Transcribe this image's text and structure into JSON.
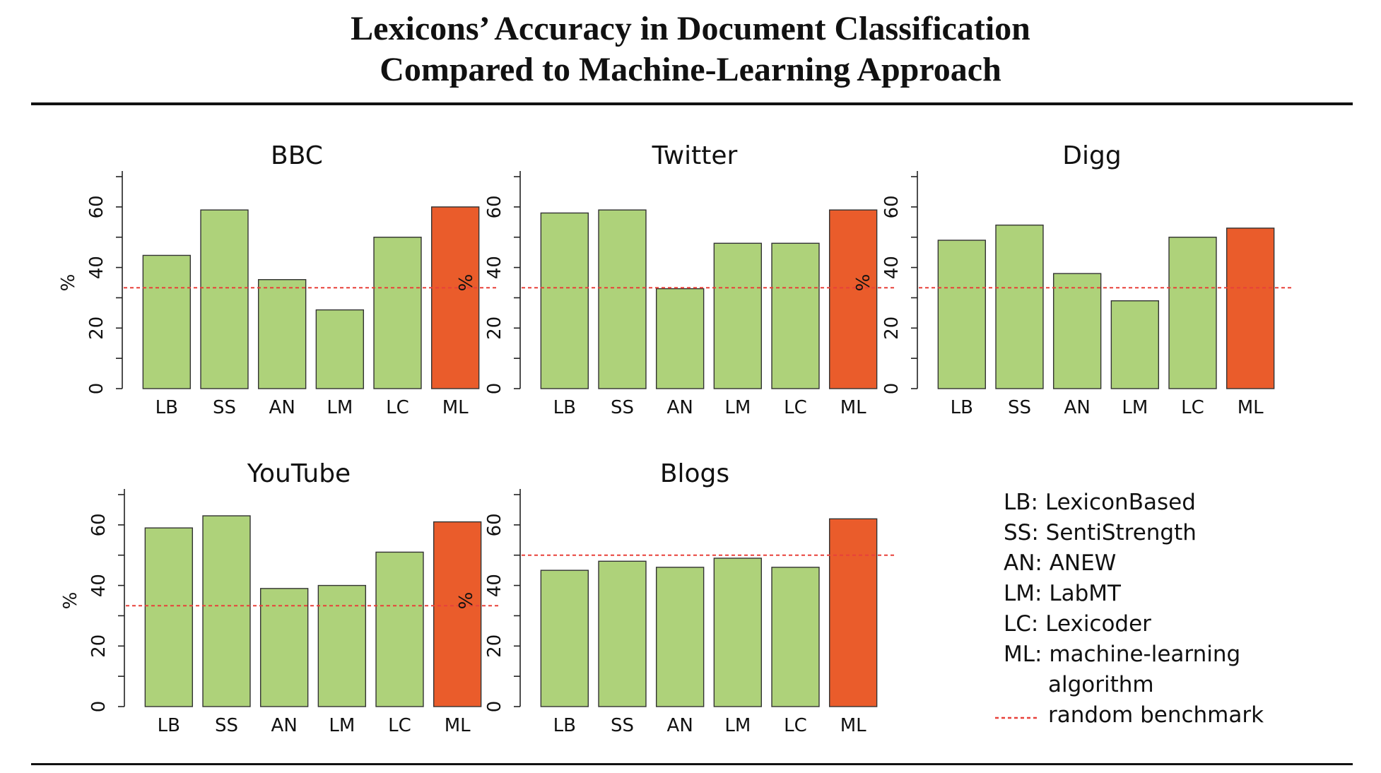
{
  "page": {
    "title_line1": "Lexicons’ Accuracy in Document Classification",
    "title_line2": "Compared to Machine-Learning Approach"
  },
  "colors": {
    "lexicon_bar": "#aed27a",
    "ml_bar": "#ea5c2b",
    "benchmark_line": "#e8413a",
    "bar_outline": "#333333"
  },
  "legend": {
    "items": [
      {
        "label": "LB: LexiconBased"
      },
      {
        "label": "SS: SentiStrength"
      },
      {
        "label": "AN: ANEW"
      },
      {
        "label": "LM: LabMT"
      },
      {
        "label": "LC: Lexicoder"
      },
      {
        "label": "ML: machine-learning"
      },
      {
        "label": "algorithm"
      },
      {
        "label": "random benchmark"
      }
    ]
  },
  "chart_data": [
    {
      "type": "bar",
      "title": "BBC",
      "ylabel": "%",
      "categories": [
        "LB",
        "SS",
        "AN",
        "LM",
        "LC",
        "ML"
      ],
      "values": [
        44,
        59,
        36,
        26,
        50,
        60
      ],
      "benchmark": 33.3,
      "ylim": [
        0,
        70
      ],
      "yticks": [
        0,
        20,
        40,
        60
      ]
    },
    {
      "type": "bar",
      "title": "Twitter",
      "ylabel": "%",
      "categories": [
        "LB",
        "SS",
        "AN",
        "LM",
        "LC",
        "ML"
      ],
      "values": [
        58,
        59,
        33,
        48,
        48,
        59
      ],
      "benchmark": 33.3,
      "ylim": [
        0,
        70
      ],
      "yticks": [
        0,
        20,
        40,
        60
      ]
    },
    {
      "type": "bar",
      "title": "Digg",
      "ylabel": "%",
      "categories": [
        "LB",
        "SS",
        "AN",
        "LM",
        "LC",
        "ML"
      ],
      "values": [
        49,
        54,
        38,
        29,
        50,
        53
      ],
      "benchmark": 33.3,
      "ylim": [
        0,
        70
      ],
      "yticks": [
        0,
        20,
        40,
        60
      ]
    },
    {
      "type": "bar",
      "title": "YouTube",
      "ylabel": "%",
      "categories": [
        "LB",
        "SS",
        "AN",
        "LM",
        "LC",
        "ML"
      ],
      "values": [
        59,
        63,
        39,
        40,
        51,
        61
      ],
      "benchmark": 33.3,
      "ylim": [
        0,
        70
      ],
      "yticks": [
        0,
        20,
        40,
        60
      ]
    },
    {
      "type": "bar",
      "title": "Blogs",
      "ylabel": "%",
      "categories": [
        "LB",
        "SS",
        "AN",
        "LM",
        "LC",
        "ML"
      ],
      "values": [
        45,
        48,
        46,
        49,
        46,
        62
      ],
      "benchmark": 50,
      "ylim": [
        0,
        70
      ],
      "yticks": [
        0,
        20,
        40,
        60
      ]
    }
  ]
}
